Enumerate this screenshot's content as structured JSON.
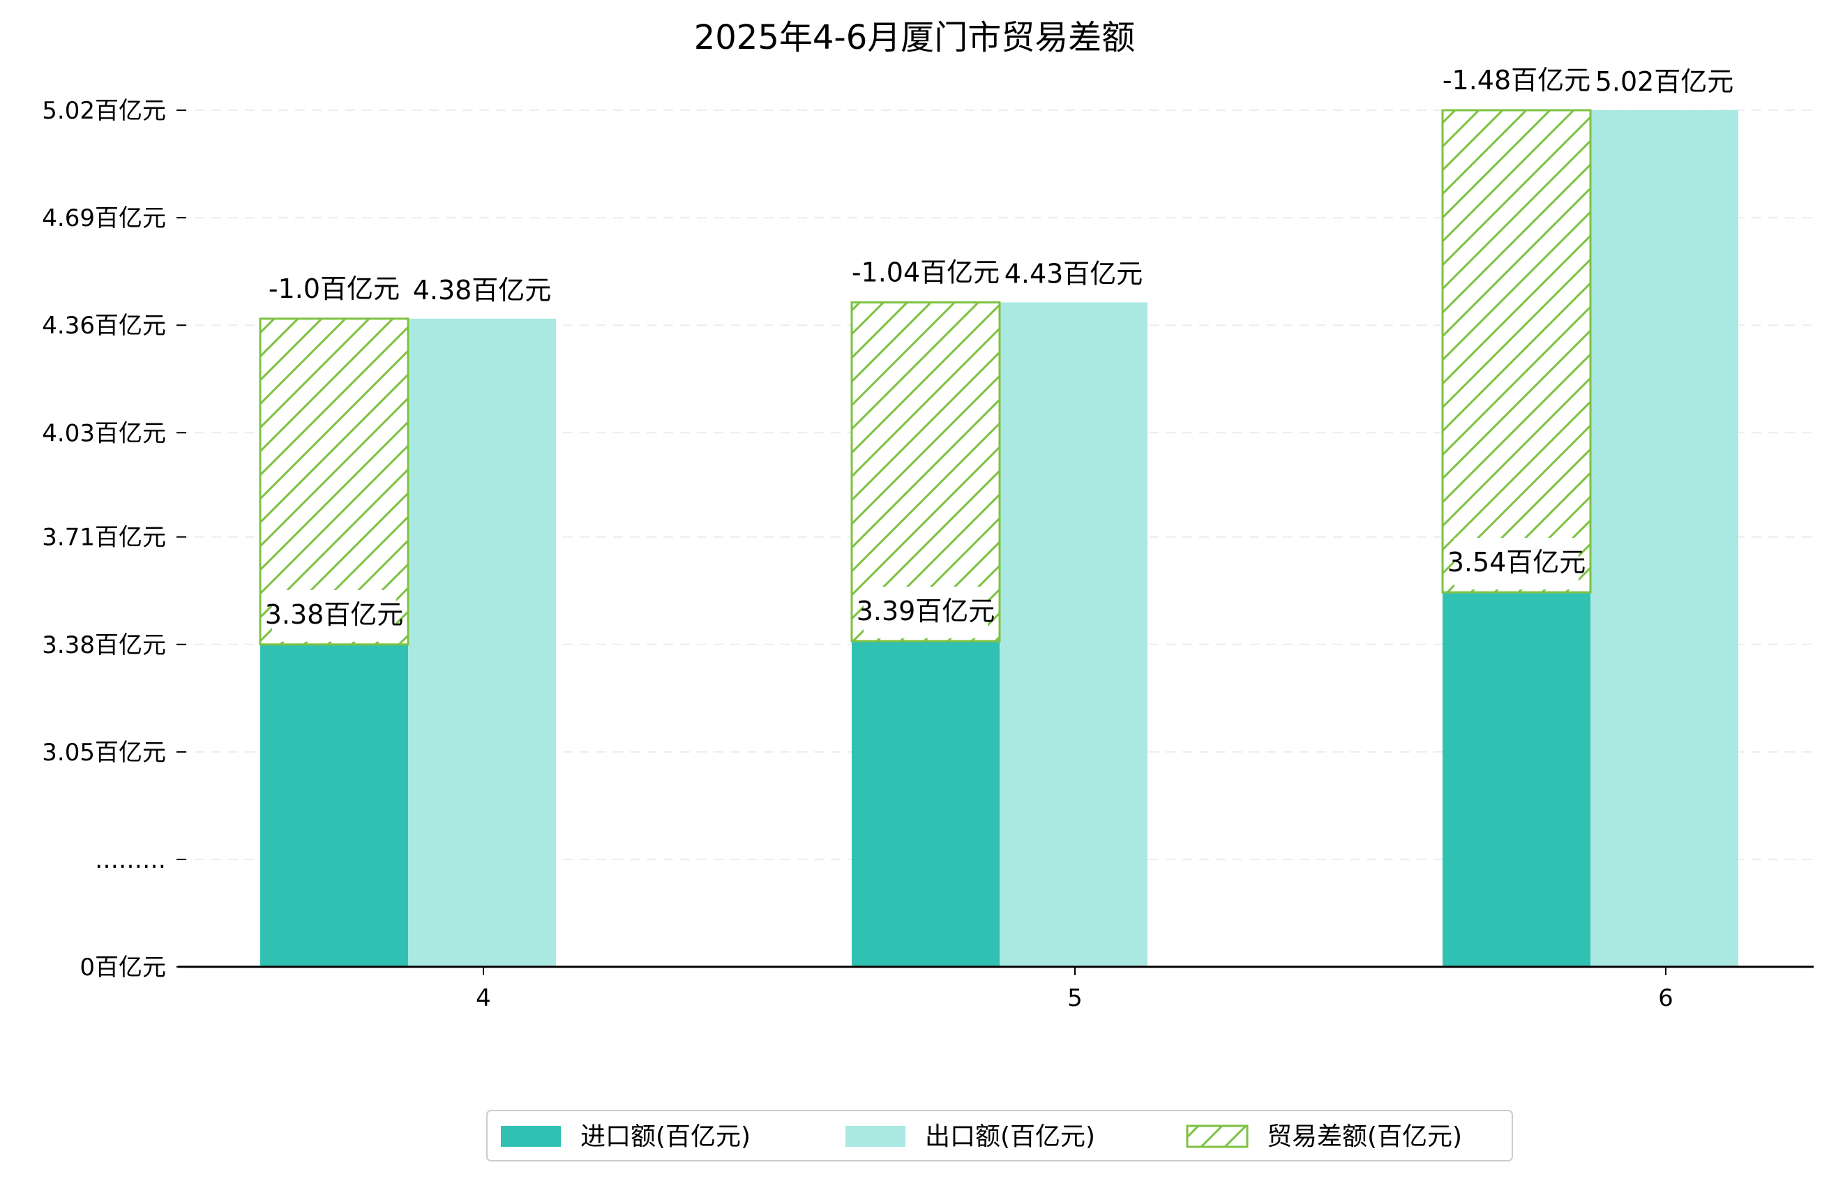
{
  "chart_data": {
    "type": "bar",
    "title": "2025年4-6月厦门市贸易差额",
    "xlabel": "",
    "ylabel": "",
    "categories": [
      "4",
      "5",
      "6"
    ],
    "series": [
      {
        "name": "进口额(百亿元)",
        "key": "import",
        "values": [
          3.38,
          3.39,
          3.54
        ],
        "color": "#31c1b3"
      },
      {
        "name": "出口额(百亿元)",
        "key": "export",
        "values": [
          4.38,
          4.43,
          5.02
        ],
        "color": "#aae8e2"
      },
      {
        "name": "贸易差额(百亿元)",
        "key": "balance",
        "values": [
          -1.0,
          -1.04,
          -1.48
        ],
        "color": "#7dc242",
        "hatch": true
      }
    ],
    "bar_labels": {
      "import": [
        "3.38百亿元",
        "3.39百亿元",
        "3.54百亿元"
      ],
      "export": [
        "4.38百亿元",
        "4.43百亿元",
        "5.02百亿元"
      ],
      "balance": [
        "-1.0百亿元",
        "-1.04百亿元",
        "-1.48百亿元"
      ]
    },
    "y_ticks": [
      {
        "value": 0,
        "label": "0百亿元"
      },
      {
        "value": 2.72,
        "label": "………"
      },
      {
        "value": 3.05,
        "label": "3.05百亿元"
      },
      {
        "value": 3.38,
        "label": "3.38百亿元"
      },
      {
        "value": 3.71,
        "label": "3.71百亿元"
      },
      {
        "value": 4.03,
        "label": "4.03百亿元"
      },
      {
        "value": 4.36,
        "label": "4.36百亿元"
      },
      {
        "value": 4.69,
        "label": "4.69百亿元"
      },
      {
        "value": 5.02,
        "label": "5.02百亿元"
      }
    ],
    "y_axis_break": {
      "break_value": 2.72,
      "linear_from": 2.72
    },
    "ylim": [
      0,
      5.2
    ],
    "grid": "horizontal dashed",
    "legend_position": "bottom-center"
  }
}
